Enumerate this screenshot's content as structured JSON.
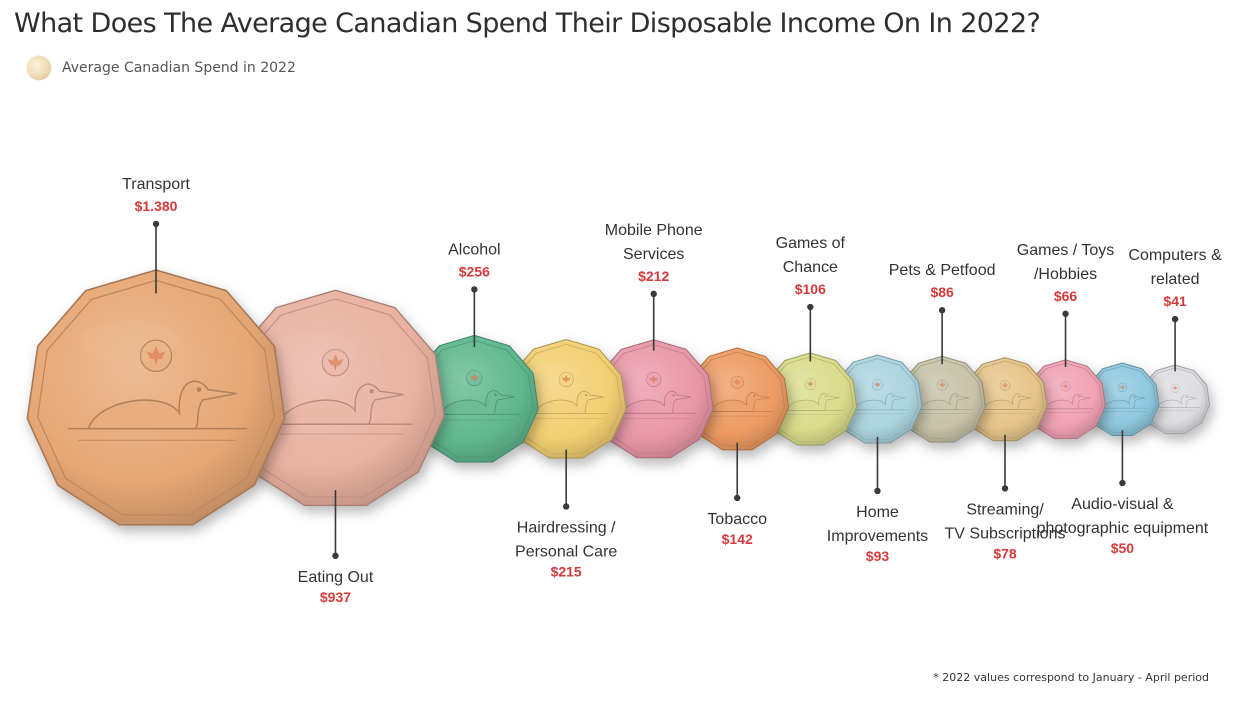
{
  "title": "What Does The Average Canadian Spend Their Disposable Income On In 2022?",
  "legend": {
    "label": "Average Canadian Spend in 2022"
  },
  "footnote": "* 2022 values correspond to January - April period",
  "colors": {
    "label_text": "#333333",
    "value_text": "#d63a3a",
    "connector": "#3a3a3a"
  },
  "chart_data": {
    "type": "bubble",
    "series": [
      {
        "name": "Average Canadian Spend in 2022",
        "points": [
          {
            "category": "Transport",
            "label_lines": [
              "Transport"
            ],
            "value": 1380,
            "value_label": "$1.380",
            "label_side": "top",
            "color": "#e6a775"
          },
          {
            "category": "Eating Out",
            "label_lines": [
              "Eating Out"
            ],
            "value": 937,
            "value_label": "$937",
            "label_side": "bottom",
            "color": "#e9b1a1"
          },
          {
            "category": "Alcohol",
            "label_lines": [
              "Alcohol"
            ],
            "value": 256,
            "value_label": "$256",
            "label_side": "top",
            "color": "#5fb78e"
          },
          {
            "category": "Hairdressing / Personal Care",
            "label_lines": [
              "Hairdressing /",
              "Personal Care"
            ],
            "value": 215,
            "value_label": "$215",
            "label_side": "bottom",
            "color": "#f1cf72"
          },
          {
            "category": "Mobile Phone Services",
            "label_lines": [
              "Mobile Phone",
              "Services"
            ],
            "value": 212,
            "value_label": "$212",
            "label_side": "top",
            "color": "#e997a8"
          },
          {
            "category": "Tobacco",
            "label_lines": [
              "Tobacco"
            ],
            "value": 142,
            "value_label": "$142",
            "label_side": "bottom",
            "color": "#ed9b62"
          },
          {
            "category": "Games of Chance",
            "label_lines": [
              "Games of",
              "Chance"
            ],
            "value": 106,
            "value_label": "$106",
            "label_side": "top",
            "color": "#d9dc8a"
          },
          {
            "category": "Home Improvements",
            "label_lines": [
              "Home",
              "Improvements"
            ],
            "value": 93,
            "value_label": "$93",
            "label_side": "bottom",
            "color": "#acd4df"
          },
          {
            "category": "Pets & Petfood",
            "label_lines": [
              "Pets & Petfood"
            ],
            "value": 86,
            "value_label": "$86",
            "label_side": "top",
            "color": "#c7c2a8"
          },
          {
            "category": "Streaming/ TV Subscriptions",
            "label_lines": [
              "Streaming/",
              "TV Subscriptions"
            ],
            "value": 78,
            "value_label": "$78",
            "label_side": "bottom",
            "color": "#e5c58a"
          },
          {
            "category": "Games / Toys /Hobbies",
            "label_lines": [
              "Games / Toys",
              "/Hobbies"
            ],
            "value": 66,
            "value_label": "$66",
            "label_side": "top",
            "color": "#f0a2b4"
          },
          {
            "category": "Audio-visual & photographic equipment",
            "label_lines": [
              "Audio-visual &",
              "photographic equipment"
            ],
            "value": 50,
            "value_label": "$50",
            "label_side": "bottom",
            "color": "#8fc8de"
          },
          {
            "category": "Computers & related",
            "label_lines": [
              "Computers &",
              "related"
            ],
            "value": 41,
            "value_label": "$41",
            "label_side": "top",
            "color": "#dedee2"
          }
        ]
      }
    ]
  }
}
